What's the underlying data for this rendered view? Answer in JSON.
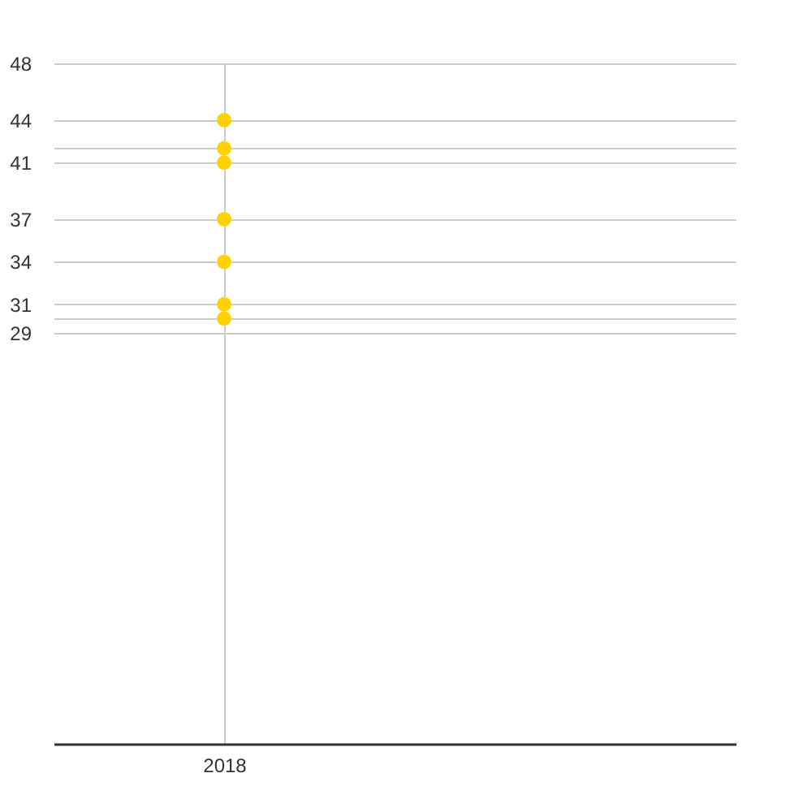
{
  "chart_data": {
    "type": "scatter",
    "categories": [
      "2018",
      null
    ],
    "series": [
      {
        "color": "#ffd200",
        "values": [
          44,
          null
        ]
      },
      {
        "color": "#ffd200",
        "values": [
          42,
          null
        ]
      },
      {
        "color": "#ffd200",
        "values": [
          41,
          null
        ]
      },
      {
        "color": "#ffd200",
        "values": [
          37,
          null
        ]
      },
      {
        "color": "#ffd200",
        "values": [
          34,
          null
        ]
      },
      {
        "color": "#ffd200",
        "values": [
          31,
          null
        ]
      },
      {
        "color": "#ffd200",
        "values": [
          30,
          null
        ]
      }
    ],
    "ylim": [
      0,
      48
    ],
    "yticks": [
      29,
      {
        "value": 30,
        "label": null
      },
      31,
      34,
      37,
      41,
      {
        "value": 42,
        "label": null
      },
      44,
      48
    ],
    "grid": true,
    "marker": "circle"
  }
}
